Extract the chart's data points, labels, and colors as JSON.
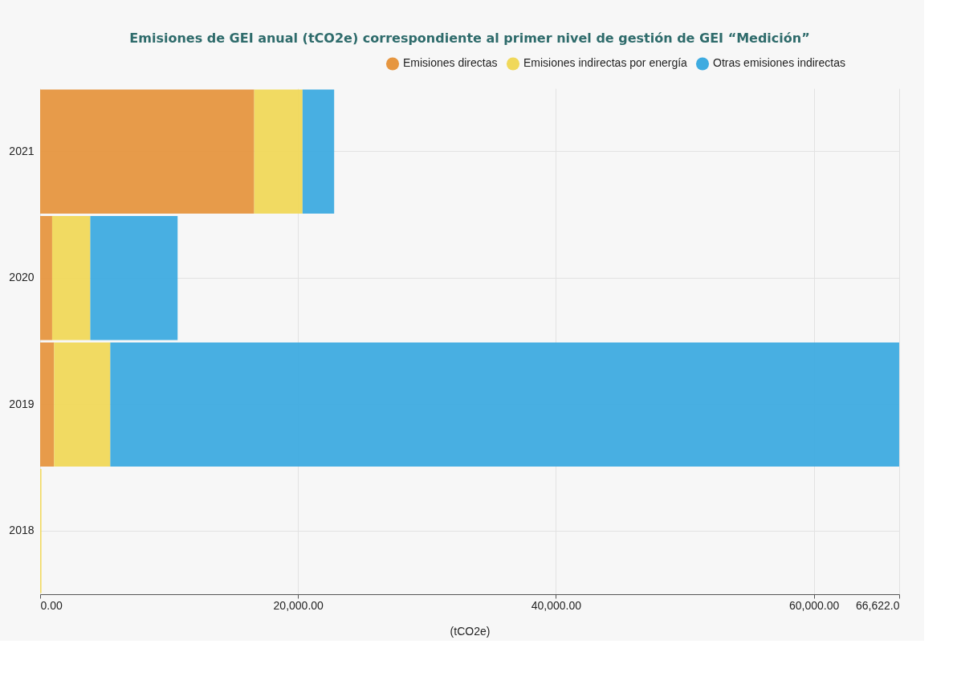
{
  "chart_data": {
    "type": "bar",
    "orientation": "horizontal",
    "stacked": true,
    "title": "Emisiones de GEI anual (tCO2e) correspondiente al primer nivel de gestión de GEI “Medición”",
    "xlabel": "(tCO2e)",
    "categories": [
      "2021",
      "2020",
      "2019",
      "2018"
    ],
    "series": [
      {
        "name": "Emisiones directas",
        "color": "#e69640",
        "values": [
          16600,
          930,
          1080,
          0
        ]
      },
      {
        "name": "Emisiones indirectas por energía",
        "color": "#f0d85a",
        "values": [
          3750,
          2960,
          4360,
          100
        ]
      },
      {
        "name": "Otras emisiones indirectas",
        "color": "#3eabe0",
        "values": [
          2450,
          6770,
          61180,
          0
        ]
      }
    ],
    "xlim": [
      0,
      66622
    ],
    "xticks": [
      {
        "value": 0,
        "label": "0.00"
      },
      {
        "value": 20000,
        "label": "20,000.00"
      },
      {
        "value": 40000,
        "label": "40,000.00"
      },
      {
        "value": 60000,
        "label": "60,000.00"
      },
      {
        "value": 66622,
        "label": "66,622.0"
      }
    ],
    "grid": true,
    "legend": "top right"
  }
}
